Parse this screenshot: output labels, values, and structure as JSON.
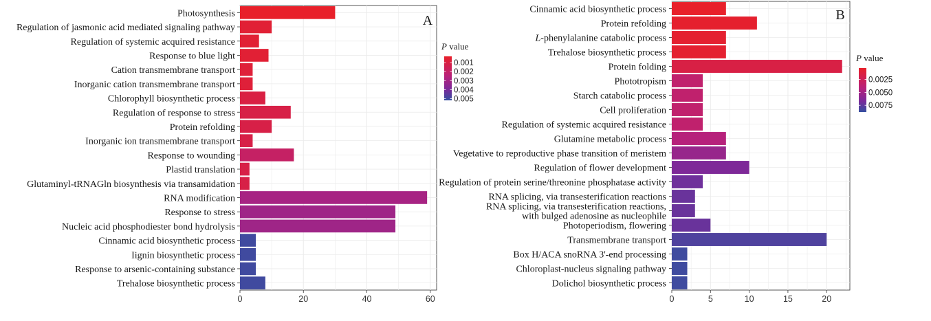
{
  "chart_data": [
    {
      "type": "bar",
      "orientation": "horizontal",
      "panel_label": "A",
      "categories": [
        "Photosynthesis",
        "Regulation of jasmonic acid mediated signaling pathway",
        "Regulation of systemic acquired resistance",
        "Response to blue light",
        "Cation transmembrane transport",
        "Inorganic cation transmembrane transport",
        "Chlorophyll biosynthetic process",
        "Regulation of response to stress",
        "Protein refolding",
        "Inorganic ion transmembrane transport",
        "Response to wounding",
        "Plastid translation",
        "Glutaminyl-tRNAGln biosynthesis via transamidation",
        "RNA modification",
        "Response to stress",
        "Nucleic acid phosphodiester bond hydrolysis",
        "Cinnamic acid biosynthetic process",
        "Iignin biosynthetic process",
        "Response to arsenic-containing substance",
        "Trehalose biosynthetic process"
      ],
      "values": [
        30,
        10,
        6,
        9,
        4,
        4,
        8,
        16,
        10,
        4,
        17,
        3,
        3,
        59,
        49,
        49,
        5,
        5,
        5,
        8
      ],
      "p_values": [
        0.0003,
        0.0006,
        0.0006,
        0.0006,
        0.0007,
        0.0007,
        0.001,
        0.0011,
        0.0011,
        0.0011,
        0.0019,
        0.0011,
        0.0011,
        0.0029,
        0.0031,
        0.0031,
        0.005,
        0.005,
        0.005,
        0.005
      ],
      "xlim": [
        0,
        62
      ],
      "xticks": [
        0,
        20,
        40,
        60
      ],
      "grid": true,
      "legend": {
        "title_italic": "P",
        "title_rest": " value",
        "position": "right",
        "range": [
          0.0003,
          0.0052
        ],
        "ticks": [
          0.001,
          0.002,
          0.003,
          0.004,
          0.005
        ],
        "tick_labels": [
          "0.001",
          "0.002",
          "0.003",
          "0.004",
          "0.005"
        ],
        "color_low": "#e8202a",
        "color_high": "#3550a0"
      }
    },
    {
      "type": "bar",
      "orientation": "horizontal",
      "panel_label": "B",
      "categories": [
        "Cinnamic acid biosynthetic process",
        "Protein refolding",
        "L-phenylalanine catabolic process",
        "Trehalose biosynthetic process",
        "Protein folding",
        "Phototropism",
        "Starch catabolic process",
        "Cell proliferation",
        "Regulation of systemic acquired resistance",
        "Glutamine metabolic process",
        "Vegetative to reproductive phase transition of meristem",
        "Regulation of flower development",
        "Regulation of protein serine/threonine phosphatase activity",
        "RNA splicing, via transesterification reactions",
        "RNA splicing, via transesterification reactions, with bulged adenosine as nucleophile",
        "Photoperiodism, flowering",
        "Transmembrane transport",
        "Box H/ACA snoRNA 3'-end processing",
        "Chloroplast-nucleus signaling pathway",
        "Dolichol biosynthetic process"
      ],
      "category_lines": [
        [
          "Cinnamic acid biosynthetic process"
        ],
        [
          "Protein refolding"
        ],
        [
          "L-phenylalanine catabolic process"
        ],
        [
          "Trehalose biosynthetic process"
        ],
        [
          "Protein folding"
        ],
        [
          "Phototropism"
        ],
        [
          "Starch catabolic process"
        ],
        [
          "Cell proliferation"
        ],
        [
          "Regulation of systemic acquired resistance"
        ],
        [
          "Glutamine metabolic process"
        ],
        [
          "Vegetative to reproductive phase transition of meristem"
        ],
        [
          "Regulation of flower development"
        ],
        [
          "Regulation of protein serine/threonine phosphatase activity"
        ],
        [
          "RNA splicing, via transesterification reactions"
        ],
        [
          "RNA splicing, via transesterification reactions,",
          "with bulged adenosine as nucleophile"
        ],
        [
          "Photoperiodism, flowering"
        ],
        [
          "Transmembrane transport"
        ],
        [
          "Box H/ACA snoRNA 3'-end processing"
        ],
        [
          "Chloroplast-nucleus signaling pathway"
        ],
        [
          "Dolichol biosynthetic process"
        ]
      ],
      "values": [
        7,
        11,
        7,
        7,
        22,
        4,
        4,
        4,
        4,
        7,
        7,
        10,
        4,
        3,
        3,
        5,
        20,
        2,
        2,
        2
      ],
      "p_values": [
        0.0003,
        0.0005,
        0.0006,
        0.0006,
        0.0016,
        0.0035,
        0.0035,
        0.0035,
        0.0035,
        0.0042,
        0.0055,
        0.0065,
        0.007,
        0.0072,
        0.0072,
        0.0072,
        0.008,
        0.0085,
        0.0085,
        0.0085
      ],
      "xlim": [
        0,
        23
      ],
      "xticks": [
        0,
        5,
        10,
        15,
        20
      ],
      "grid": true,
      "legend": {
        "title_italic": "P",
        "title_rest": " value",
        "position": "right",
        "range": [
          0.0003,
          0.0088
        ],
        "ticks": [
          0.0025,
          0.005,
          0.0075
        ],
        "tick_labels": [
          "0.0025",
          "0.0050",
          "0.0075"
        ],
        "color_low": "#e8202a",
        "color_high": "#3550a0"
      }
    }
  ]
}
